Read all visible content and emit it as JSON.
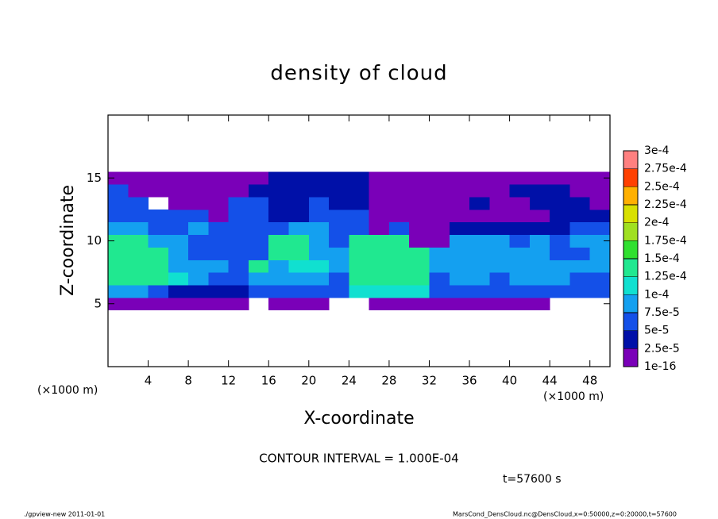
{
  "chart_data": {
    "type": "heatmap",
    "title": "density of cloud",
    "xlabel": "X-coordinate",
    "ylabel": "Z-coordinate",
    "x_units": "(×1000 m)",
    "y_units": "(×1000 m)",
    "xlim": [
      0,
      50
    ],
    "ylim": [
      0,
      20
    ],
    "xticks": [
      4,
      8,
      12,
      16,
      20,
      24,
      28,
      32,
      36,
      40,
      44,
      48
    ],
    "yticks": [
      5,
      10,
      15
    ],
    "x": [
      1,
      3,
      5,
      7,
      9,
      11,
      13,
      15,
      17,
      19,
      21,
      23,
      25,
      27,
      29,
      31,
      33,
      35,
      37,
      39,
      41,
      43,
      45,
      47,
      49
    ],
    "z": [
      5,
      6,
      7,
      8,
      9,
      10,
      11,
      12,
      13,
      14,
      15
    ],
    "values": [
      [
        1e-05,
        1e-05,
        1e-05,
        1e-05,
        1e-05,
        1e-05,
        1e-05,
        0,
        1e-05,
        1e-05,
        1e-05,
        0,
        0,
        1e-05,
        1e-05,
        1e-05,
        1e-05,
        1e-05,
        1e-05,
        1e-05,
        1e-05,
        1e-05,
        0,
        0,
        0
      ],
      [
        9e-05,
        9e-05,
        6e-05,
        4e-05,
        4e-05,
        4e-05,
        4e-05,
        6e-05,
        6e-05,
        6e-05,
        6e-05,
        6e-05,
        0.00011,
        0.00011,
        0.00011,
        0.00011,
        6e-05,
        6e-05,
        6e-05,
        6e-05,
        6e-05,
        6e-05,
        6e-05,
        6e-05,
        6e-05
      ],
      [
        0.00014,
        0.00014,
        0.00014,
        0.00011,
        9e-05,
        6e-05,
        6e-05,
        9e-05,
        9e-05,
        9e-05,
        9e-05,
        6e-05,
        0.00014,
        0.00014,
        0.00014,
        0.00014,
        6e-05,
        9e-05,
        9e-05,
        6e-05,
        9e-05,
        9e-05,
        9e-05,
        6e-05,
        6e-05
      ],
      [
        0.00014,
        0.00014,
        0.00014,
        9e-05,
        9e-05,
        9e-05,
        6e-05,
        0.00014,
        9e-05,
        0.00011,
        0.00011,
        9e-05,
        0.00014,
        0.00014,
        0.00014,
        0.00014,
        9e-05,
        9e-05,
        9e-05,
        9e-05,
        9e-05,
        9e-05,
        9e-05,
        9e-05,
        9e-05
      ],
      [
        0.00014,
        0.00014,
        0.00014,
        9e-05,
        6e-05,
        6e-05,
        6e-05,
        6e-05,
        0.00014,
        0.00014,
        9e-05,
        9e-05,
        0.00014,
        0.00014,
        0.00014,
        0.00014,
        9e-05,
        9e-05,
        9e-05,
        9e-05,
        9e-05,
        9e-05,
        6e-05,
        6e-05,
        9e-05
      ],
      [
        0.00014,
        0.00014,
        9e-05,
        9e-05,
        6e-05,
        6e-05,
        6e-05,
        6e-05,
        0.00014,
        0.00014,
        9e-05,
        6e-05,
        0.00014,
        0.00014,
        0.00014,
        1e-05,
        1e-05,
        9e-05,
        9e-05,
        9e-05,
        6e-05,
        9e-05,
        6e-05,
        9e-05,
        9e-05
      ],
      [
        9e-05,
        9e-05,
        6e-05,
        6e-05,
        9e-05,
        6e-05,
        6e-05,
        6e-05,
        6e-05,
        9e-05,
        9e-05,
        6e-05,
        6e-05,
        1e-05,
        6e-05,
        1e-05,
        1e-05,
        4e-05,
        4e-05,
        4e-05,
        4e-05,
        4e-05,
        4e-05,
        6e-05,
        6e-05
      ],
      [
        6e-05,
        6e-05,
        6e-05,
        6e-05,
        6e-05,
        1e-05,
        6e-05,
        6e-05,
        4e-05,
        4e-05,
        6e-05,
        6e-05,
        6e-05,
        1e-05,
        1e-05,
        1e-05,
        1e-05,
        1e-05,
        1e-05,
        1e-05,
        1e-05,
        1e-05,
        4e-05,
        4e-05,
        4e-05
      ],
      [
        6e-05,
        6e-05,
        0,
        1e-05,
        1e-05,
        1e-05,
        6e-05,
        6e-05,
        4e-05,
        4e-05,
        6e-05,
        4e-05,
        4e-05,
        1e-05,
        1e-05,
        1e-05,
        1e-05,
        1e-05,
        4e-05,
        1e-05,
        1e-05,
        4e-05,
        4e-05,
        4e-05,
        1e-05
      ],
      [
        6e-05,
        1e-05,
        1e-05,
        1e-05,
        1e-05,
        1e-05,
        1e-05,
        4e-05,
        4e-05,
        4e-05,
        4e-05,
        4e-05,
        4e-05,
        1e-05,
        1e-05,
        1e-05,
        1e-05,
        1e-05,
        1e-05,
        1e-05,
        4e-05,
        4e-05,
        4e-05,
        1e-05,
        1e-05
      ],
      [
        1e-05,
        1e-05,
        1e-05,
        1e-05,
        1e-05,
        1e-05,
        1e-05,
        1e-05,
        4e-05,
        4e-05,
        4e-05,
        4e-05,
        4e-05,
        1e-05,
        1e-05,
        1e-05,
        1e-05,
        1e-05,
        1e-05,
        1e-05,
        1e-05,
        1e-05,
        1e-05,
        1e-05,
        1e-05
      ]
    ],
    "colorbar": {
      "levels": [
        1e-16,
        {
          "value": 2.5e-05,
          "label": "2.5e-5"
        },
        {
          "value": 5e-05,
          "label": "5e-5"
        },
        {
          "value": 7.5e-05,
          "label": "7.5e-5"
        },
        {
          "value": 0.0001,
          "label": "1e-4"
        },
        {
          "value": 0.000125,
          "label": "1.25e-4"
        },
        {
          "value": 0.00015,
          "label": "1.5e-4"
        },
        {
          "value": 0.000175,
          "label": "1.75e-4"
        },
        {
          "value": 0.0002,
          "label": "2e-4"
        },
        {
          "value": 0.000225,
          "label": "2.25e-4"
        },
        {
          "value": 0.00025,
          "label": "2.5e-4"
        },
        {
          "value": 0.000275,
          "label": "2.75e-4"
        },
        {
          "value": 0.0003,
          "label": "3e-4"
        }
      ],
      "colors": [
        "#7a00b8",
        "#0010a8",
        "#1450e8",
        "#14a0f0",
        "#10e0d0",
        "#20e890",
        "#30e030",
        "#a0e020",
        "#d8e000",
        "#ffb000",
        "#ff4000",
        "#ff8080"
      ]
    },
    "annotation": "CONTOUR INTERVAL = 1.000E-04",
    "time_label": "t=57600 s",
    "footer_left": "./gpview-new  2011-01-01",
    "footer_right": "MarsCond_DensCloud.nc@DensCloud,x=0:50000,z=0:20000,t=57600"
  }
}
